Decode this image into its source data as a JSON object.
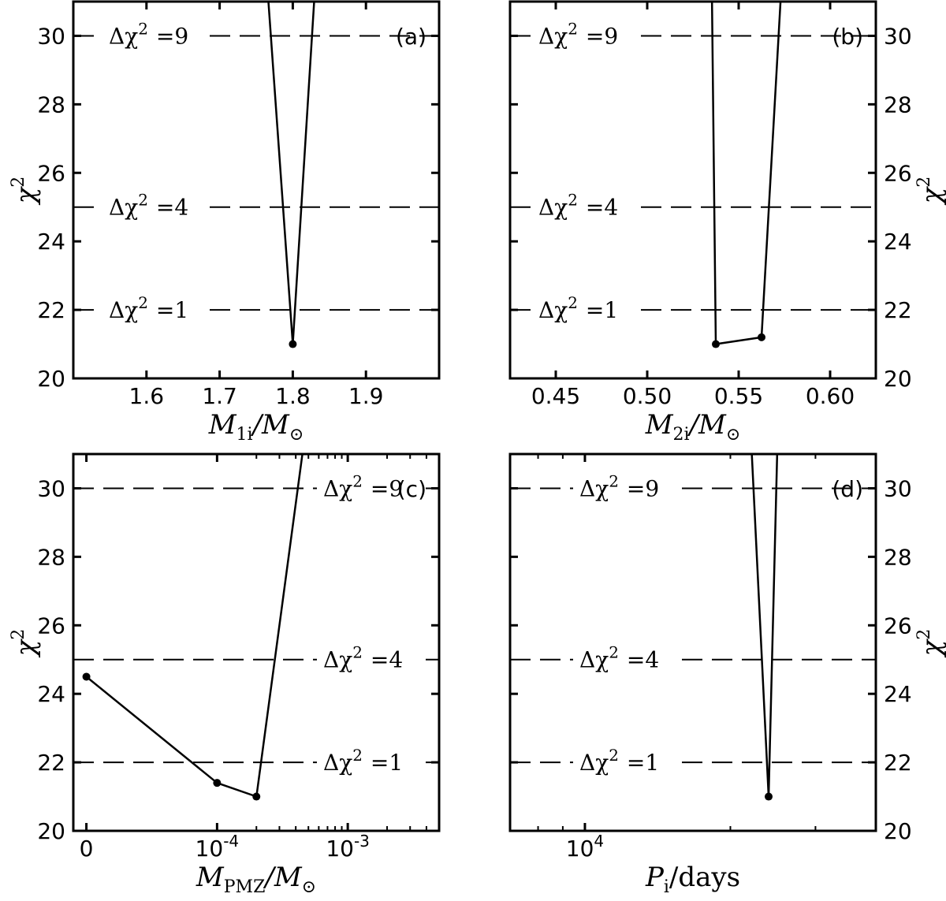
{
  "figure": {
    "y_tick_labels": [
      "20",
      "22",
      "24",
      "26",
      "28",
      "30"
    ],
    "ylabel": "χ",
    "ylabel_sup": "2",
    "delta_prefix": "Δχ",
    "delta_sup": "2",
    "delta_values": [
      "=1",
      "=4",
      "=9"
    ]
  },
  "chart_data": [
    {
      "panel": "(a)",
      "type": "line",
      "x": [
        1.76,
        1.8,
        1.835
      ],
      "y": [
        33,
        21,
        33
      ],
      "markers": [
        [
          1.8,
          21
        ]
      ],
      "xlim": [
        1.5,
        2.0
      ],
      "ylim": [
        20,
        31
      ],
      "x_ticks": [
        1.6,
        1.7,
        1.8,
        1.9
      ],
      "x_tick_labels": [
        "1.6",
        "1.7",
        "1.8",
        "1.9"
      ],
      "y_ticks": [
        20,
        22,
        24,
        26,
        28,
        30
      ],
      "hlines": [
        22,
        25,
        30
      ],
      "annotations": [
        "Δχ² =1",
        "Δχ² =4",
        "Δχ² =9"
      ],
      "xlabel_main": "M",
      "xlabel_sub": "1i",
      "xlabel_tail": "/M",
      "xlabel_tail_sub": "⊙",
      "ylabel_side": "left"
    },
    {
      "panel": "(b)",
      "type": "line",
      "x": [
        0.535,
        0.5375,
        0.5625,
        0.575
      ],
      "y": [
        33,
        21,
        21.2,
        33
      ],
      "markers": [
        [
          0.5375,
          21
        ],
        [
          0.5625,
          21.2
        ]
      ],
      "xlim": [
        0.425,
        0.625
      ],
      "ylim": [
        20,
        31
      ],
      "x_ticks": [
        0.45,
        0.5,
        0.55,
        0.6
      ],
      "x_tick_labels": [
        "0.45",
        "0.50",
        "0.55",
        "0.60"
      ],
      "y_ticks": [
        20,
        22,
        24,
        26,
        28,
        30
      ],
      "hlines": [
        22,
        25,
        30
      ],
      "annotations": [
        "Δχ² =1",
        "Δχ² =4",
        "Δχ² =9"
      ],
      "xlabel_main": "M",
      "xlabel_sub": "2i",
      "xlabel_tail": "/M",
      "xlabel_tail_sub": "⊙",
      "ylabel_side": "right"
    },
    {
      "panel": "(c)",
      "type": "line",
      "x": [
        0,
        0.0001,
        0.0002,
        0.00045
      ],
      "y": [
        24.5,
        21.4,
        21,
        31
      ],
      "markers": [
        [
          0,
          24.5
        ],
        [
          0.0001,
          21.4
        ],
        [
          0.0002,
          21
        ]
      ],
      "xscale": "symlog",
      "linthresh": 0.0001,
      "xlim": [
        -1e-05,
        0.005
      ],
      "ylim": [
        20,
        31
      ],
      "x_ticks": [
        0,
        0.0001,
        0.001
      ],
      "x_tick_labels": [
        "0",
        "10",
        "10"
      ],
      "x_tick_exponents": [
        "",
        "-4",
        "-3"
      ],
      "y_ticks": [
        20,
        22,
        24,
        26,
        28,
        30
      ],
      "hlines": [
        22,
        25,
        30
      ],
      "annotations": [
        "Δχ² =1",
        "Δχ² =4",
        "Δχ² =9"
      ],
      "xlabel_main": "M",
      "xlabel_sub": "PMZ",
      "xlabel_tail": "/M",
      "xlabel_tail_sub": "⊙",
      "ylabel_side": "left"
    },
    {
      "panel": "(d)",
      "type": "line",
      "xscale": "log",
      "x": [
        21800,
        24000,
        25200
      ],
      "y": [
        33,
        21,
        33
      ],
      "markers": [
        [
          24000,
          21
        ]
      ],
      "xlim": [
        7000,
        40000
      ],
      "ylim": [
        20,
        31
      ],
      "x_ticks": [
        10000
      ],
      "x_tick_labels": [
        "10"
      ],
      "x_tick_exponents": [
        "4"
      ],
      "y_ticks": [
        20,
        22,
        24,
        26,
        28,
        30
      ],
      "hlines": [
        22,
        25,
        30
      ],
      "annotations": [
        "Δχ² =1",
        "Δχ² =4",
        "Δχ² =9"
      ],
      "xlabel_main": "P",
      "xlabel_sub": "i",
      "xlabel_tail": "/days",
      "xlabel_tail_sub": "",
      "ylabel_side": "right"
    }
  ]
}
